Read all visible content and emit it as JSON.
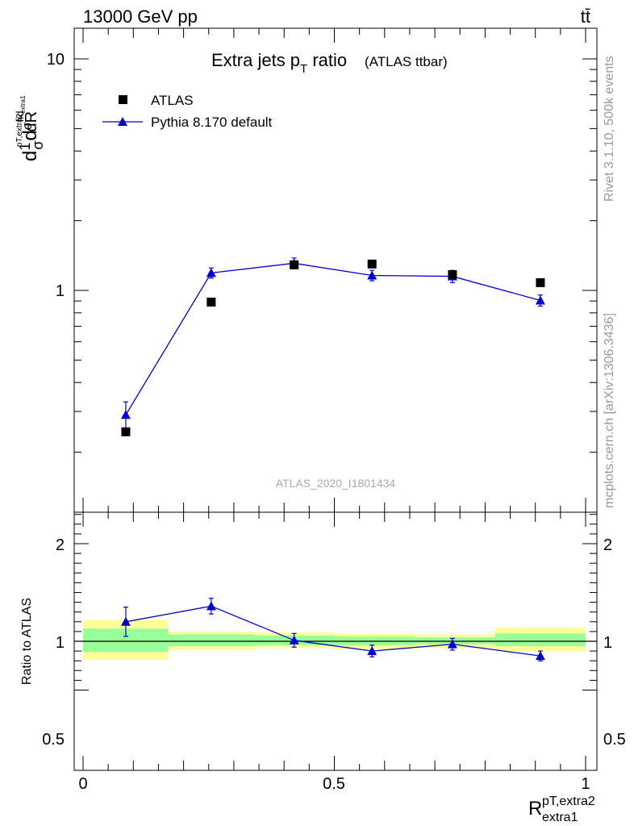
{
  "header": {
    "left": "13000 GeV pp",
    "right": "tt̄"
  },
  "side": {
    "rivet": "Rivet 3.1.10,  500k events",
    "mcplots": "mcplots.cern.ch [arXiv:1306.3436]"
  },
  "colors": {
    "atlas": "#000000",
    "pythia": "#0000cc",
    "band_inner": "#99ff99",
    "band_outer": "#ffff99"
  },
  "chart_data": [
    {
      "type": "scatter",
      "title": "Extra jets p",
      "title_sub": "T",
      "title_rest": " ratio",
      "title_small": "(ATLAS ttbar)",
      "ylabel": "dσ/dR",
      "ylabel_parts": [
        "d",
        "1",
        "σ",
        "d",
        "σ",
        "fid",
        "d",
        "R",
        "pT,extra2",
        "extra1"
      ],
      "yscale": "log",
      "xlim": [
        0,
        1
      ],
      "ylim": [
        0.2,
        14
      ],
      "y_ticks_labeled": [
        1,
        10
      ],
      "y_tick_labels": [
        "1",
        "10"
      ],
      "watermark": "ATLAS_2020_I1801434",
      "legend": {
        "position": "top-left",
        "entries": [
          "ATLAS",
          "Pythia 8.170 default"
        ]
      },
      "series": [
        {
          "name": "ATLAS",
          "marker": "square",
          "x": [
            0.085,
            0.255,
            0.42,
            0.575,
            0.735,
            0.91
          ],
          "y": [
            0.245,
            0.89,
            1.29,
            1.3,
            1.17,
            1.08
          ]
        },
        {
          "name": "Pythia 8.170 default",
          "marker": "triangle",
          "x": [
            0.085,
            0.255,
            0.42,
            0.575,
            0.735,
            0.91
          ],
          "y": [
            0.29,
            1.19,
            1.31,
            1.16,
            1.15,
            0.905
          ],
          "yerr": [
            0.04,
            0.06,
            0.07,
            0.06,
            0.07,
            0.05
          ]
        }
      ]
    },
    {
      "type": "line",
      "ylabel": "Ratio to ATLAS",
      "xlabel": "R",
      "xlabel_sup": "pT,extra2",
      "xlabel_sub": "extra1",
      "xlim": [
        0,
        1
      ],
      "ylim": [
        0.4,
        2.4
      ],
      "y_tick_labels": [
        "0.5",
        "1",
        "2"
      ],
      "y_ticks": [
        0.5,
        1,
        2
      ],
      "x_tick_labels": [
        "0",
        "0.5",
        "1"
      ],
      "x_ticks": [
        0,
        0.5,
        1
      ],
      "bins": [
        0,
        0.17,
        0.34,
        0.5,
        0.66,
        0.82,
        1.0
      ],
      "band_inner": [
        [
          0.89,
          1.13
        ],
        [
          0.95,
          1.07
        ],
        [
          0.96,
          1.06
        ],
        [
          0.96,
          1.05
        ],
        [
          0.97,
          1.04
        ],
        [
          0.95,
          1.08
        ]
      ],
      "band_outer": [
        [
          0.81,
          1.22
        ],
        [
          0.91,
          1.1
        ],
        [
          0.93,
          1.09
        ],
        [
          0.92,
          1.08
        ],
        [
          0.93,
          1.07
        ],
        [
          0.9,
          1.14
        ]
      ],
      "series": [
        {
          "name": "Pythia 8.170 default",
          "x": [
            0.085,
            0.255,
            0.42,
            0.575,
            0.735,
            0.91
          ],
          "y": [
            1.2,
            1.36,
            1.01,
            0.9,
            0.97,
            0.85
          ],
          "yerr": [
            0.15,
            0.08,
            0.07,
            0.06,
            0.06,
            0.05
          ]
        }
      ]
    }
  ]
}
